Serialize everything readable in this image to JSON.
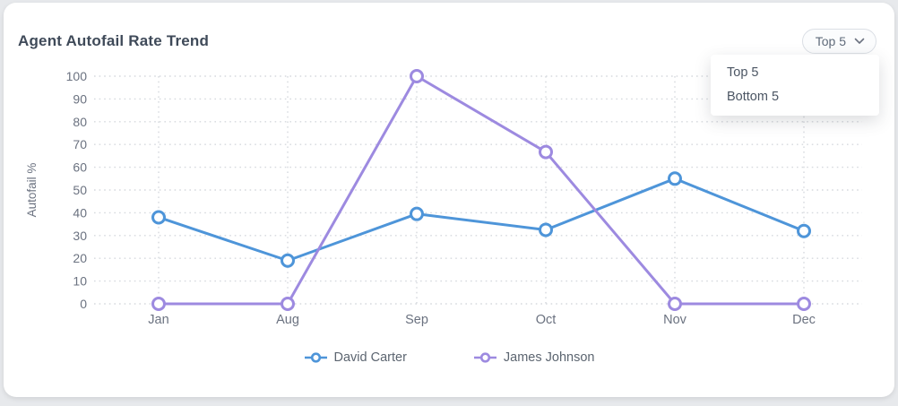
{
  "card": {
    "title": "Agent Autofail Rate Trend"
  },
  "dropdown": {
    "selected_label": "Top 5",
    "icon": "chevron-down-icon",
    "menu_items": [
      "Top 5",
      "Bottom 5"
    ]
  },
  "chart_data": {
    "type": "line",
    "title": "Agent Autofail Rate Trend",
    "categories": [
      "Jan",
      "Aug",
      "Sep",
      "Oct",
      "Nov",
      "Dec"
    ],
    "series": [
      {
        "name": "David Carter",
        "color": "#4e95d9",
        "values": [
          38,
          19,
          39.5,
          32.5,
          55,
          32
        ]
      },
      {
        "name": "James Johnson",
        "color": "#9d8ae0",
        "values": [
          0,
          0,
          100,
          66.7,
          0,
          0
        ]
      }
    ],
    "xlabel": "",
    "ylabel": "Autofail %",
    "ylim": [
      0,
      100
    ],
    "ytick_step": 10,
    "yticks": [
      0,
      10,
      20,
      30,
      40,
      50,
      60,
      70,
      80,
      90,
      100
    ],
    "grid": "dotted",
    "legend_position": "bottom",
    "marker": "hollow-circle"
  },
  "colors": {
    "page_background": "#e7e9ec",
    "card_background": "#ffffff",
    "axis_text": "#6b7280",
    "gridline": "#d6d9de",
    "title_text": "#3f4a59",
    "series_blue": "#4e95d9",
    "series_purple": "#9d8ae0"
  }
}
